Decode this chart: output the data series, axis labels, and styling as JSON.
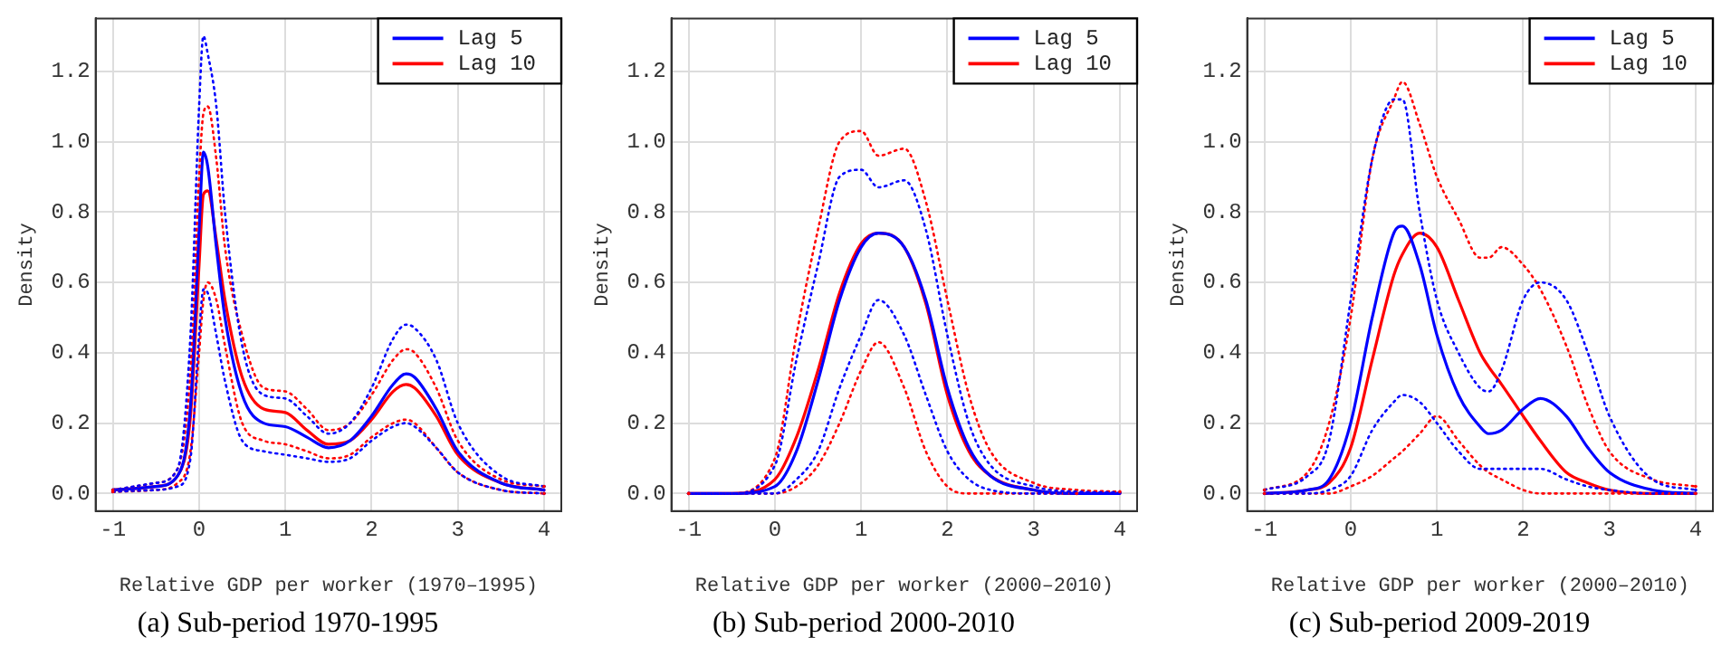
{
  "chart_data": [
    {
      "type": "line",
      "title": "(a) Sub-period 1970-1995",
      "xlabel": "Relative GDP per worker (1970–1995)",
      "ylabel": "Density",
      "xlim": [
        -1.2,
        4.2
      ],
      "ylim": [
        -0.05,
        1.35
      ],
      "xticks": [
        -1,
        0,
        1,
        2,
        3,
        4
      ],
      "yticks": [
        {
          "value": 0,
          "label": "0.0"
        },
        {
          "value": 0.2,
          "label": "0.2"
        },
        {
          "value": 0.4,
          "label": "0.4"
        },
        {
          "value": 0.6,
          "label": "0.6"
        },
        {
          "value": 0.8,
          "label": "0.8"
        },
        {
          "value": 1,
          "label": "1.0"
        },
        {
          "value": 1.2,
          "label": "1.2"
        }
      ],
      "grid": true,
      "legend": "top right",
      "line_style": "solid",
      "marker": "none",
      "x": [
        -1,
        -0.5,
        -0.25,
        -0.1,
        0,
        0.05,
        0.1,
        0.2,
        0.3,
        0.5,
        0.75,
        1,
        1.25,
        1.5,
        1.75,
        2,
        2.25,
        2.4,
        2.5,
        2.75,
        3,
        3.5,
        4
      ],
      "series": [
        {
          "color": "#0000ff",
          "line_style": "dotted",
          "values": [
            0.005,
            0.01,
            0.02,
            0.1,
            0.45,
            0.58,
            0.57,
            0.45,
            0.32,
            0.15,
            0.12,
            0.11,
            0.1,
            0.09,
            0.1,
            0.15,
            0.19,
            0.2,
            0.19,
            0.13,
            0.06,
            0.01,
            0
          ]
        },
        {
          "color": "#0000ff",
          "line_style": "dotted",
          "values": [
            0.01,
            0.03,
            0.07,
            0.45,
            1.1,
            1.3,
            1.25,
            1.1,
            0.8,
            0.42,
            0.28,
            0.27,
            0.22,
            0.17,
            0.2,
            0.3,
            0.44,
            0.48,
            0.47,
            0.38,
            0.2,
            0.05,
            0.02
          ]
        },
        {
          "color": "#ff0000",
          "line_style": "dotted",
          "values": [
            0.005,
            0.01,
            0.03,
            0.12,
            0.4,
            0.55,
            0.6,
            0.55,
            0.42,
            0.2,
            0.15,
            0.14,
            0.12,
            0.1,
            0.11,
            0.16,
            0.2,
            0.21,
            0.2,
            0.13,
            0.06,
            0.01,
            0
          ]
        },
        {
          "color": "#ff0000",
          "line_style": "dotted",
          "values": [
            0.01,
            0.03,
            0.07,
            0.35,
            0.9,
            1.08,
            1.1,
            0.95,
            0.7,
            0.45,
            0.3,
            0.29,
            0.24,
            0.18,
            0.2,
            0.28,
            0.38,
            0.41,
            0.4,
            0.3,
            0.15,
            0.04,
            0.02
          ]
        },
        {
          "name": "Lag 5",
          "color": "#0000ff",
          "values": [
            0.01,
            0.02,
            0.05,
            0.25,
            0.75,
            0.97,
            0.93,
            0.7,
            0.5,
            0.28,
            0.2,
            0.19,
            0.16,
            0.13,
            0.15,
            0.22,
            0.31,
            0.34,
            0.33,
            0.24,
            0.12,
            0.03,
            0.01
          ]
        },
        {
          "name": "Lag 10",
          "color": "#ff0000",
          "values": [
            0.01,
            0.02,
            0.05,
            0.22,
            0.65,
            0.85,
            0.86,
            0.72,
            0.55,
            0.33,
            0.24,
            0.23,
            0.18,
            0.14,
            0.15,
            0.21,
            0.29,
            0.31,
            0.3,
            0.22,
            0.11,
            0.03,
            0.01
          ]
        }
      ]
    },
    {
      "type": "line",
      "title": "(b) Sub-period 2000-2010",
      "xlabel": "Relative GDP per worker (2000–2010)",
      "ylabel": "Density",
      "xlim": [
        -1.2,
        4.2
      ],
      "ylim": [
        -0.05,
        1.35
      ],
      "xticks": [
        -1,
        0,
        1,
        2,
        3,
        4
      ],
      "yticks": [
        {
          "value": 0,
          "label": "0.0"
        },
        {
          "value": 0.2,
          "label": "0.2"
        },
        {
          "value": 0.4,
          "label": "0.4"
        },
        {
          "value": 0.6,
          "label": "0.6"
        },
        {
          "value": 0.8,
          "label": "0.8"
        },
        {
          "value": 1,
          "label": "1.0"
        },
        {
          "value": 1.2,
          "label": "1.2"
        }
      ],
      "grid": true,
      "legend": "top right",
      "line_style": "solid",
      "marker": "none",
      "x": [
        -1,
        -0.5,
        0,
        0.25,
        0.5,
        0.75,
        1,
        1.2,
        1.5,
        1.75,
        2,
        2.25,
        2.5,
        3,
        3.5,
        4
      ],
      "series": [
        {
          "color": "#0000ff",
          "line_style": "dotted",
          "x": [
            -1,
            -0.5,
            0,
            0.25,
            0.5,
            0.75,
            1,
            1.2,
            1.5,
            1.75,
            2,
            2.25,
            2.5,
            3,
            3.5
          ],
          "values": [
            0,
            0,
            0,
            0.04,
            0.12,
            0.3,
            0.45,
            0.55,
            0.45,
            0.28,
            0.12,
            0.04,
            0.01,
            0,
            0
          ]
        },
        {
          "color": "#0000ff",
          "line_style": "dotted",
          "values": [
            0,
            0,
            0.08,
            0.38,
            0.65,
            0.9,
            0.92,
            0.87,
            0.89,
            0.75,
            0.45,
            0.2,
            0.08,
            0.02,
            0.005,
            0.003
          ]
        },
        {
          "color": "#ff0000",
          "line_style": "dotted",
          "x": [
            -1,
            -0.5,
            0,
            0.25,
            0.5,
            0.75,
            1,
            1.2,
            1.5,
            1.75,
            2,
            2.25,
            2.5,
            3,
            3.5
          ],
          "values": [
            0,
            0,
            0,
            0.02,
            0.08,
            0.2,
            0.35,
            0.43,
            0.3,
            0.12,
            0.02,
            0,
            0,
            0,
            0
          ]
        },
        {
          "color": "#ff0000",
          "line_style": "dotted",
          "values": [
            0,
            0,
            0.1,
            0.45,
            0.75,
            1,
            1.03,
            0.96,
            0.98,
            0.83,
            0.55,
            0.28,
            0.12,
            0.03,
            0.01,
            0.005
          ]
        },
        {
          "name": "Lag 5",
          "color": "#0000ff",
          "values": [
            0,
            0,
            0.02,
            0.12,
            0.32,
            0.55,
            0.7,
            0.74,
            0.7,
            0.55,
            0.3,
            0.13,
            0.05,
            0.01,
            0,
            0
          ]
        },
        {
          "name": "Lag 10",
          "color": "#ff0000",
          "values": [
            0,
            0,
            0.04,
            0.16,
            0.35,
            0.57,
            0.71,
            0.74,
            0.7,
            0.54,
            0.28,
            0.12,
            0.05,
            0.01,
            0,
            0
          ]
        }
      ]
    },
    {
      "type": "line",
      "title": "(c) Sub-period 2009-2019",
      "xlabel": "Relative GDP per worker (2000–2010)",
      "ylabel": "Density",
      "xlim": [
        -1.2,
        4.2
      ],
      "ylim": [
        -0.05,
        1.35
      ],
      "xticks": [
        -1,
        0,
        1,
        2,
        3,
        4
      ],
      "yticks": [
        {
          "value": 0,
          "label": "0.0"
        },
        {
          "value": 0.2,
          "label": "0.2"
        },
        {
          "value": 0.4,
          "label": "0.4"
        },
        {
          "value": 0.6,
          "label": "0.6"
        },
        {
          "value": 0.8,
          "label": "0.8"
        },
        {
          "value": 1,
          "label": "1.0"
        },
        {
          "value": 1.2,
          "label": "1.2"
        }
      ],
      "grid": true,
      "legend": "top right",
      "line_style": "solid",
      "marker": "none",
      "x": [
        -1,
        -0.5,
        -0.25,
        0,
        0.25,
        0.5,
        0.6,
        0.8,
        1,
        1.25,
        1.5,
        1.6,
        1.75,
        2,
        2.2,
        2.5,
        2.75,
        3,
        3.5,
        4
      ],
      "series": [
        {
          "color": "#0000ff",
          "line_style": "dotted",
          "values": [
            0,
            0,
            0.01,
            0.05,
            0.18,
            0.26,
            0.28,
            0.26,
            0.2,
            0.12,
            0.07,
            0.07,
            0.07,
            0.07,
            0.07,
            0.04,
            0.02,
            0.01,
            0,
            0
          ]
        },
        {
          "color": "#0000ff",
          "line_style": "dotted",
          "values": [
            0.01,
            0.05,
            0.15,
            0.55,
            0.95,
            1.12,
            1.12,
            0.8,
            0.55,
            0.4,
            0.3,
            0.29,
            0.35,
            0.55,
            0.6,
            0.55,
            0.4,
            0.22,
            0.04,
            0.01
          ]
        },
        {
          "color": "#ff0000",
          "line_style": "dotted",
          "values": [
            0,
            0,
            0,
            0.02,
            0.05,
            0.1,
            0.12,
            0.17,
            0.22,
            0.15,
            0.08,
            0.06,
            0.04,
            0.01,
            0,
            0,
            0,
            0,
            0,
            0
          ]
        },
        {
          "color": "#ff0000",
          "line_style": "dotted",
          "values": [
            0.01,
            0.06,
            0.2,
            0.5,
            0.95,
            1.12,
            1.17,
            1.05,
            0.9,
            0.78,
            0.67,
            0.67,
            0.7,
            0.65,
            0.58,
            0.42,
            0.25,
            0.12,
            0.04,
            0.02
          ]
        },
        {
          "name": "Lag 5",
          "color": "#0000ff",
          "values": [
            0,
            0.01,
            0.04,
            0.2,
            0.5,
            0.74,
            0.76,
            0.65,
            0.45,
            0.28,
            0.19,
            0.17,
            0.18,
            0.24,
            0.27,
            0.22,
            0.13,
            0.06,
            0.01,
            0
          ]
        },
        {
          "name": "Lag 10",
          "color": "#ff0000",
          "values": [
            0,
            0.01,
            0.03,
            0.13,
            0.38,
            0.62,
            0.68,
            0.74,
            0.7,
            0.55,
            0.4,
            0.36,
            0.31,
            0.22,
            0.15,
            0.06,
            0.03,
            0.01,
            0,
            0
          ]
        }
      ]
    }
  ]
}
